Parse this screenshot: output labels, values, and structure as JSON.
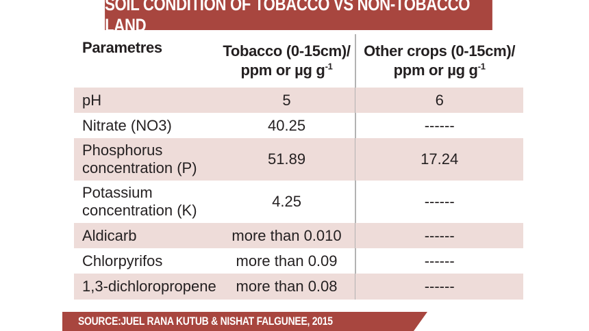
{
  "title": "SOIL CONDITION OF TOBACCO VS NON-TOBACCO LAND",
  "source": "SOURCE:JUEL RANA KUTUB & NISHAT FALGUNEE, 2015",
  "colors": {
    "accent": "#a8463f",
    "row_shade": "#eedcd9",
    "text": "#231f20"
  },
  "chart_data": {
    "type": "table",
    "columns": [
      {
        "line1": "Parametres",
        "line2": "",
        "sup": ""
      },
      {
        "line1": "Tobacco (0-15cm)/",
        "line2": "ppm or µg g",
        "sup": "-1"
      },
      {
        "line1": "Other crops (0-15cm)/",
        "line2": "ppm or µg g",
        "sup": "-1"
      }
    ],
    "rows": [
      {
        "param": [
          "pH"
        ],
        "tobacco": "5",
        "other": "6"
      },
      {
        "param": [
          "Nitrate (NO3)"
        ],
        "tobacco": "40.25",
        "other": "------"
      },
      {
        "param": [
          "Phosphorus",
          "concentration (P)"
        ],
        "tobacco": "51.89",
        "other": "17.24"
      },
      {
        "param": [
          "Potassium",
          "concentration (K)"
        ],
        "tobacco": "4.25",
        "other": "------"
      },
      {
        "param": [
          "Aldicarb"
        ],
        "tobacco": "more than 0.010",
        "other": "------"
      },
      {
        "param": [
          "Chlorpyrifos"
        ],
        "tobacco": "more than 0.09",
        "other": "------"
      },
      {
        "param": [
          "1,3-dichloropropene"
        ],
        "tobacco": "more than 0.08",
        "other": "------"
      }
    ]
  }
}
